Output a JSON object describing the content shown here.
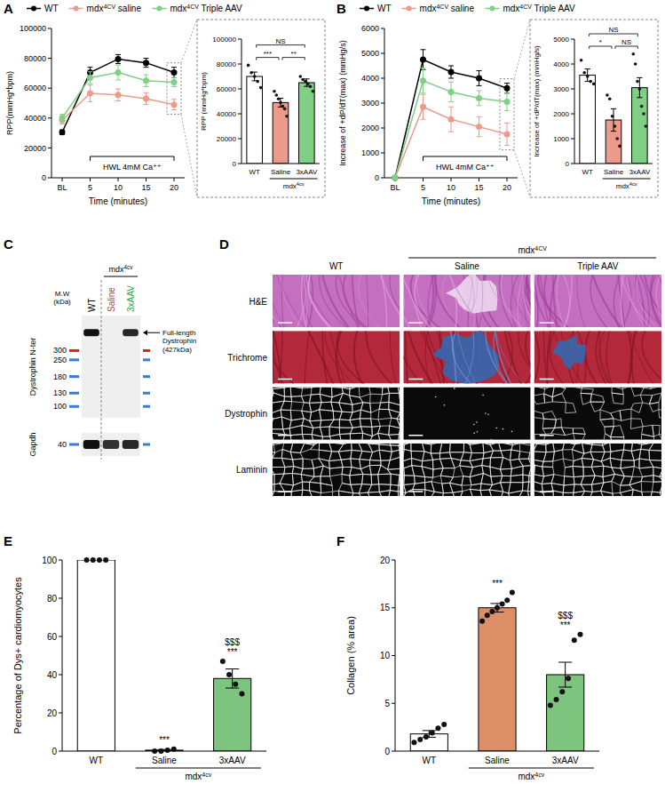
{
  "chart_data": [
    {
      "type": "line",
      "panel_label": "A",
      "y_label": "RPP(mmHg*bpm)",
      "x_label": "Time (minutes)",
      "categories": [
        "BL",
        "5",
        "10",
        "15",
        "20"
      ],
      "ylim": [
        0,
        100000
      ],
      "yticks": [
        0,
        20000,
        40000,
        60000,
        80000,
        100000
      ],
      "legend": "top",
      "annotation": {
        "text": "HWL 4mM Ca⁺⁺",
        "from": 1,
        "to": 4
      },
      "series": [
        {
          "name": "WT",
          "color": "#000000",
          "marker": "circle",
          "values": [
            30500,
            70500,
            79500,
            77000,
            70500
          ],
          "errors": [
            1500,
            3500,
            3000,
            3000,
            3500
          ]
        },
        {
          "name": "mdx4CV saline",
          "color": "#eb9a8c",
          "marker": "circle",
          "values": [
            38500,
            56500,
            55500,
            53000,
            49000
          ],
          "errors": [
            2500,
            5500,
            4000,
            4000,
            3500
          ]
        },
        {
          "name": "mdx4CV Triple AAV",
          "color": "#7fcf85",
          "marker": "circle",
          "values": [
            40000,
            67000,
            70500,
            65000,
            64000
          ],
          "errors": [
            2500,
            4000,
            5000,
            4000,
            3000
          ]
        }
      ]
    },
    {
      "type": "bar",
      "y_label": "RPP (mmHg*bpm)",
      "categories": [
        "WT",
        "Saline",
        "3xAAV"
      ],
      "group_label": "mdx4cv",
      "group": [
        1,
        2
      ],
      "ylim": [
        0,
        100000
      ],
      "yticks": [
        0,
        20000,
        40000,
        60000,
        80000,
        100000
      ],
      "colors": [
        "#ffffff",
        "#eb9a8c",
        "#7fcf85"
      ],
      "values": [
        70000,
        49000,
        65000
      ],
      "errors": [
        3500,
        3500,
        3000
      ],
      "points": [
        [
          79000,
          73000,
          70000,
          66000,
          61000
        ],
        [
          58000,
          55000,
          52000,
          49000,
          46000,
          44000,
          38000
        ],
        [
          70000,
          67500,
          66000,
          64000,
          62000,
          58000
        ]
      ],
      "significance": [
        {
          "from": 0,
          "to": 1,
          "label": "***"
        },
        {
          "from": 1,
          "to": 2,
          "label": "**"
        },
        {
          "from": 0,
          "to": 2,
          "label": "NS"
        }
      ]
    },
    {
      "type": "line",
      "panel_label": "B",
      "y_label": "Increase of +dP/dT(max) (mmHg/s)",
      "x_label": "Time (minutes)",
      "categories": [
        "BL",
        "5",
        "10",
        "15",
        "20"
      ],
      "ylim": [
        0,
        6000
      ],
      "yticks": [
        0,
        1000,
        2000,
        3000,
        4000,
        5000,
        6000
      ],
      "legend": "top",
      "annotation": {
        "text": "HWL 4mM Ca⁺⁺",
        "from": 1,
        "to": 4
      },
      "series": [
        {
          "name": "WT",
          "color": "#000000",
          "marker": "circle",
          "values": [
            0,
            4750,
            4250,
            4000,
            3600
          ],
          "errors": [
            0,
            400,
            250,
            300,
            200
          ]
        },
        {
          "name": "mdx4CV saline",
          "color": "#eb9a8c",
          "marker": "circle",
          "values": [
            0,
            2850,
            2350,
            2050,
            1750
          ],
          "errors": [
            0,
            500,
            500,
            400,
            450
          ]
        },
        {
          "name": "mdx4CV Triple AAV",
          "color": "#7fcf85",
          "marker": "circle",
          "values": [
            0,
            3900,
            3450,
            3200,
            3050
          ],
          "errors": [
            0,
            500,
            400,
            300,
            350
          ]
        }
      ]
    },
    {
      "type": "bar",
      "y_label": "Increase of +dP/dT(max) (mmHg/s)",
      "categories": [
        "WT",
        "Saline",
        "3xAAV"
      ],
      "group_label": "mdx4cv",
      "group": [
        1,
        2
      ],
      "ylim": [
        0,
        5000
      ],
      "yticks": [
        0,
        1000,
        2000,
        3000,
        4000,
        5000
      ],
      "colors": [
        "#ffffff",
        "#eb9a8c",
        "#7fcf85"
      ],
      "values": [
        3550,
        1750,
        3050
      ],
      "errors": [
        250,
        450,
        400
      ],
      "points": [
        [
          4150,
          3650,
          3500,
          3300,
          3200
        ],
        [
          2750,
          2600,
          1900,
          1500,
          1000,
          700
        ],
        [
          4400,
          4000,
          3300,
          3000,
          2300,
          2000,
          1500
        ]
      ],
      "significance": [
        {
          "from": 0,
          "to": 1,
          "label": "*"
        },
        {
          "from": 1,
          "to": 2,
          "label": "NS"
        },
        {
          "from": 0,
          "to": 2,
          "label": "NS"
        }
      ]
    },
    {
      "type": "blot",
      "panel_label": "C",
      "lanes": [
        {
          "name": "WT",
          "color": "#000000"
        },
        {
          "name": "Saline",
          "color": "#c0392b"
        },
        {
          "name": "3xAAV",
          "color": "#2e9e44"
        }
      ],
      "group_label": "mdx4cv",
      "group": [
        1,
        2
      ],
      "y_label": "Dystrophin N-ter",
      "mw_label": "M.W (kDa)",
      "markers": [
        {
          "value": 300,
          "color": "#e02020"
        },
        {
          "value": 250,
          "color": "#3a7bd5"
        },
        {
          "value": 180,
          "color": "#3a7bd5"
        },
        {
          "value": 130,
          "color": "#3a7bd5"
        },
        {
          "value": 100,
          "color": "#3a7bd5"
        }
      ],
      "band_label": "Full-length Dystrophin (427kDa)",
      "band_mw": 427,
      "band_intensity": [
        1,
        0,
        0.9
      ],
      "loading_label": "Gapdh",
      "loading_marker": {
        "value": 40,
        "color": "#3a7bd5"
      },
      "loading_intensity": [
        1,
        0.85,
        0.9
      ]
    },
    {
      "type": "image_grid",
      "panel_label": "D",
      "columns": [
        "WT",
        "Saline",
        "Triple AAV"
      ],
      "group_label": "mdx4CV",
      "group": [
        1,
        2
      ],
      "rows": [
        "H&E",
        "Trichrome",
        "Dystrophin",
        "Laminin"
      ]
    },
    {
      "type": "bar",
      "panel_label": "E",
      "y_label": "Percentage of Dys+ cardiomyocytes",
      "categories": [
        "WT",
        "Saline",
        "3xAAV"
      ],
      "group_label": "mdx4cv",
      "group": [
        1,
        2
      ],
      "ylim": [
        0,
        100
      ],
      "yticks": [
        0,
        20,
        40,
        60,
        80,
        100
      ],
      "colors": [
        "#ffffff",
        "#f4a999",
        "#7dc47f"
      ],
      "values": [
        100,
        0.5,
        38
      ],
      "errors": [
        0,
        0.3,
        5
      ],
      "points": [
        [
          100,
          100,
          100,
          100
        ],
        [
          0,
          0,
          0.5,
          1
        ],
        [
          47,
          40,
          35,
          30
        ]
      ],
      "annotations": [
        [],
        [
          "***"
        ],
        [
          "$$$",
          "***"
        ]
      ]
    },
    {
      "type": "bar",
      "panel_label": "F",
      "y_label": "Collagen (% area)",
      "categories": [
        "WT",
        "Saline",
        "3xAAV"
      ],
      "group_label": "mdx4cv",
      "group": [
        1,
        2
      ],
      "ylim": [
        0,
        20
      ],
      "yticks": [
        0,
        5,
        10,
        15,
        20
      ],
      "colors": [
        "#ffffff",
        "#dd9068",
        "#7dc47f"
      ],
      "values": [
        1.8,
        15,
        8
      ],
      "errors": [
        0.35,
        0.45,
        1.3
      ],
      "points": [
        [
          0.9,
          1.2,
          1.5,
          1.9,
          2.4,
          2.8
        ],
        [
          13.6,
          14.2,
          14.6,
          15,
          15.4,
          15.8,
          16.6
        ],
        [
          4.8,
          5.4,
          6.2,
          7.6,
          11.6,
          12.2
        ]
      ],
      "annotations": [
        [],
        [
          "***"
        ],
        [
          "$$$",
          "***"
        ]
      ]
    }
  ]
}
